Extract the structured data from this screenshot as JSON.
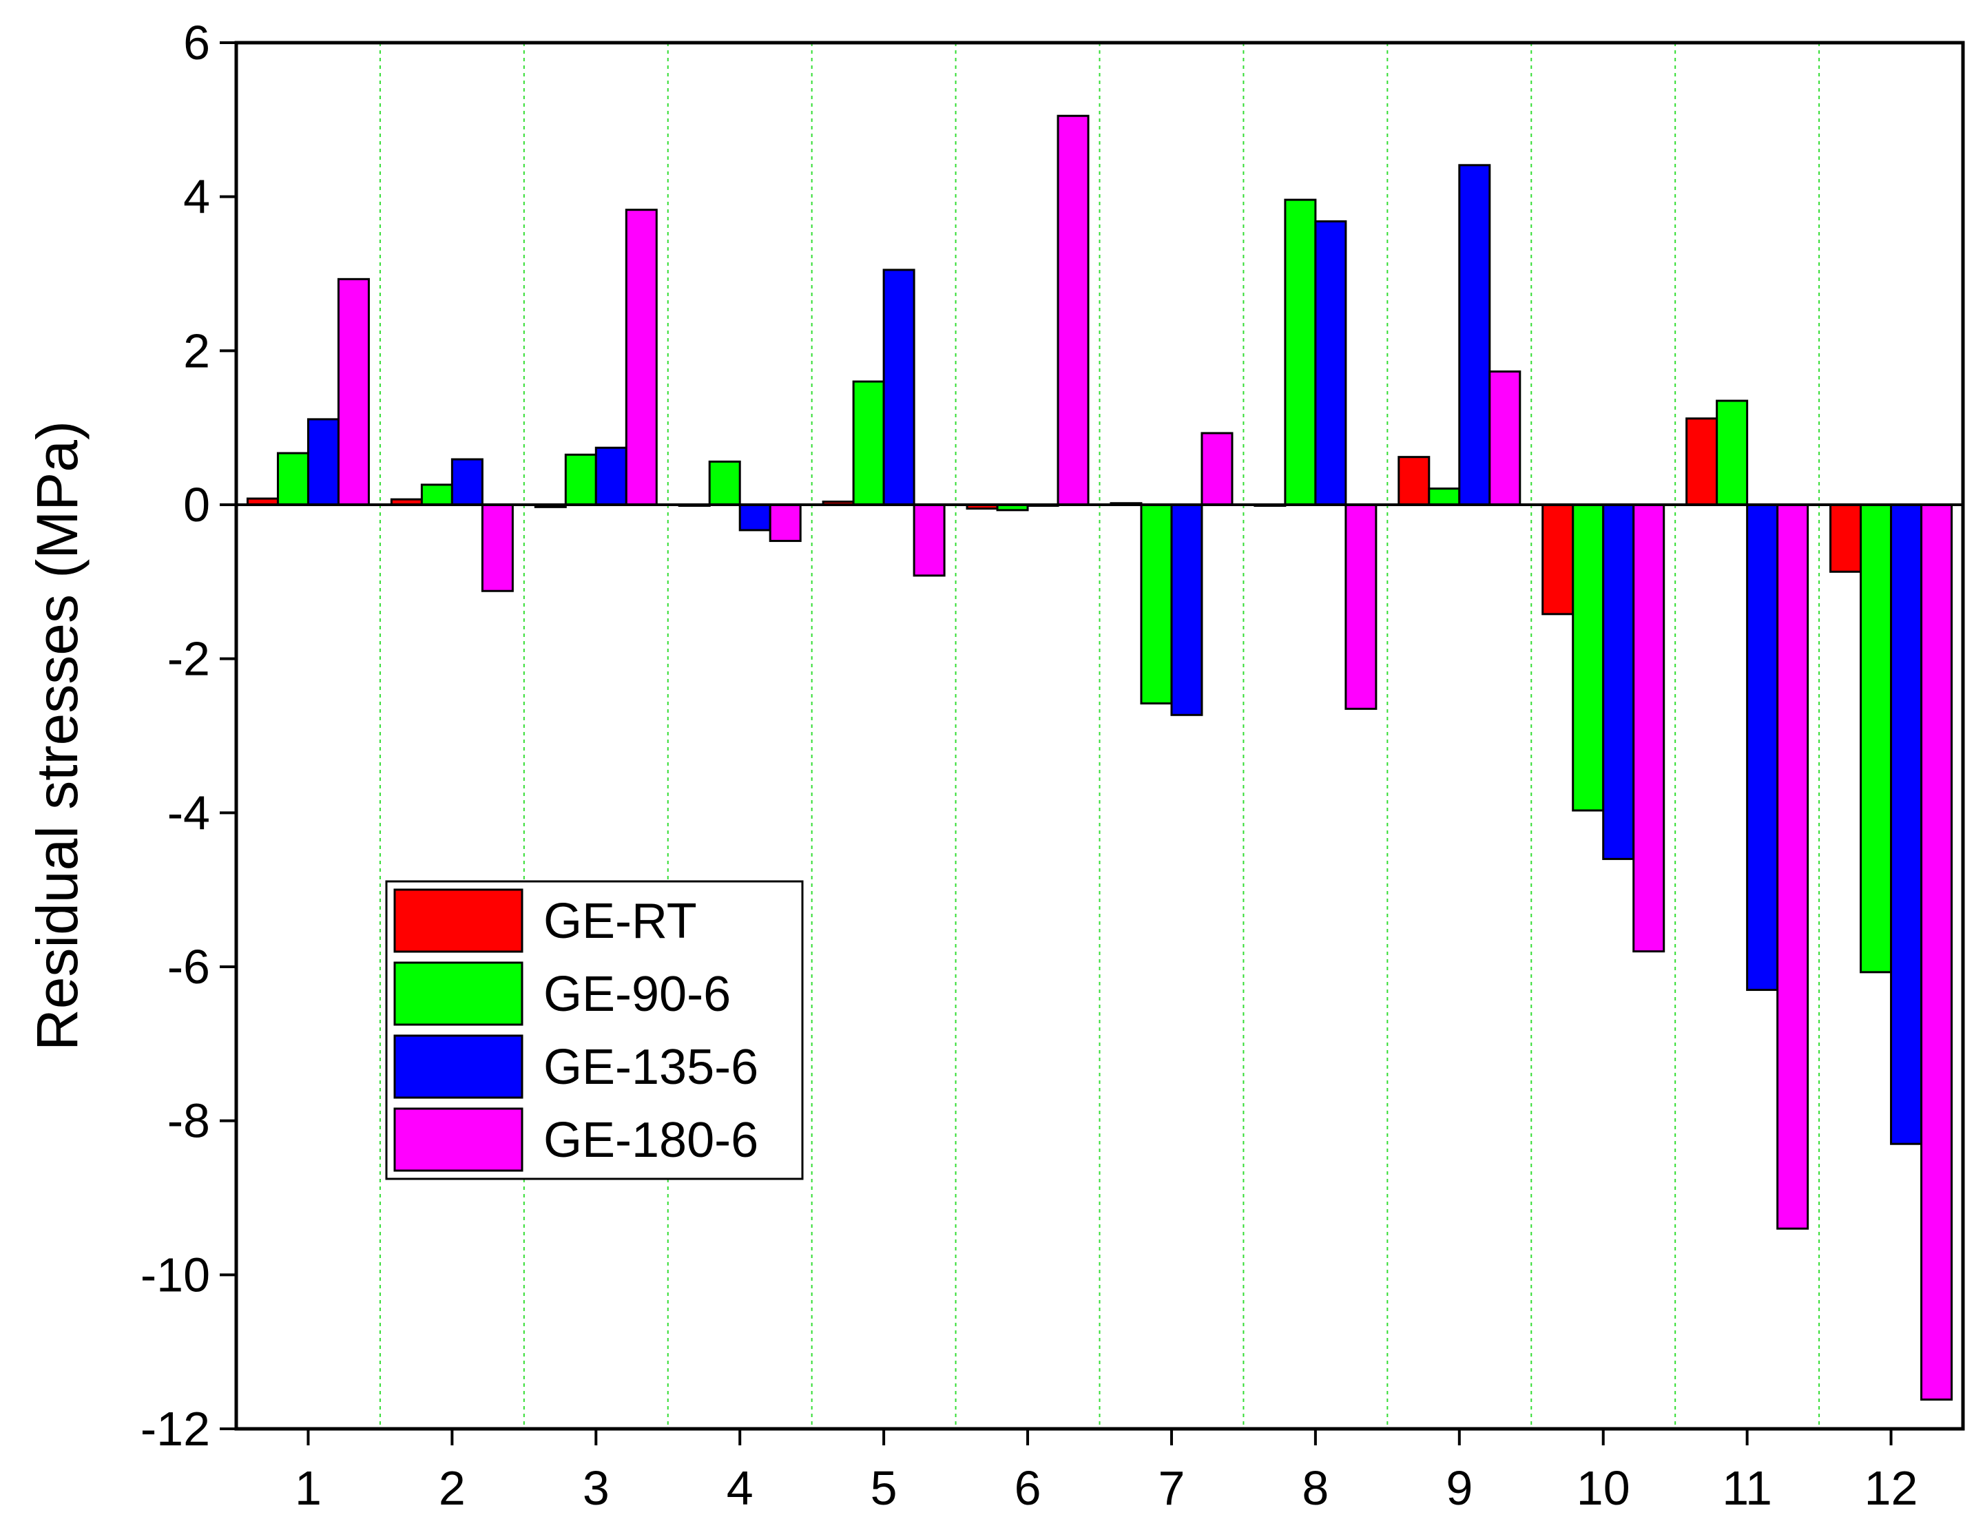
{
  "chart_data": {
    "type": "bar",
    "title": "",
    "xlabel": "",
    "ylabel": "Residual stresses (MPa)",
    "categories": [
      "1",
      "2",
      "3",
      "4",
      "5",
      "6",
      "7",
      "8",
      "9",
      "10",
      "11",
      "12"
    ],
    "ylim": [
      -12,
      6
    ],
    "yticks": [
      6,
      4,
      2,
      0,
      -2,
      -4,
      -6,
      -8,
      -10,
      -12
    ],
    "ytick_labels": [
      "6",
      "4",
      "2",
      "0",
      "-2",
      "-4",
      "-6",
      "-8",
      "-10",
      "-12"
    ],
    "grid": "vertical dotted lines between categories",
    "legend_position": "lower-left",
    "series": [
      {
        "name": "GE-RT",
        "color": "#ff0000",
        "values": [
          0.08,
          0.07,
          -0.03,
          0.0,
          0.04,
          -0.05,
          0.02,
          0.0,
          0.62,
          -1.42,
          1.12,
          -0.87
        ]
      },
      {
        "name": "GE-90-6",
        "color": "#00ff00",
        "values": [
          0.67,
          0.26,
          0.65,
          0.56,
          1.6,
          -0.07,
          -2.58,
          3.96,
          0.21,
          -3.97,
          1.35,
          -6.07
        ]
      },
      {
        "name": "GE-135-6",
        "color": "#0000ff",
        "values": [
          1.11,
          0.59,
          0.74,
          -0.33,
          3.05,
          0.0,
          -2.73,
          3.68,
          4.41,
          -4.6,
          -6.3,
          -8.3
        ]
      },
      {
        "name": "GE-180-6",
        "color": "#ff00ff",
        "values": [
          2.93,
          -1.12,
          3.83,
          -0.47,
          -0.92,
          5.05,
          0.93,
          -2.65,
          1.73,
          -5.8,
          -9.4,
          -11.62
        ]
      }
    ]
  }
}
